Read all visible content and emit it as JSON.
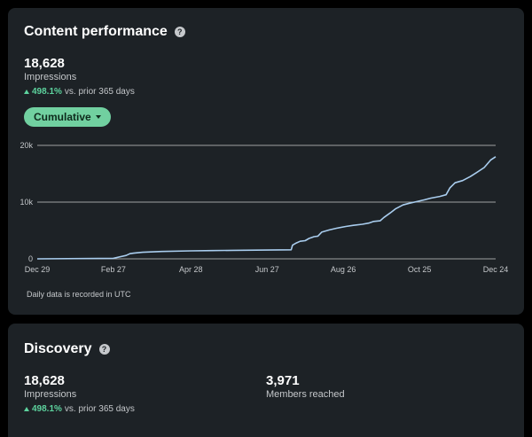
{
  "performance": {
    "title": "Content performance",
    "help_icon": "question-circle-icon",
    "impressions_value": "18,628",
    "impressions_label": "Impressions",
    "trend_pct": "498.1%",
    "trend_text": "vs. prior 365 days",
    "dropdown_label": "Cumulative",
    "footnote": "Daily data is recorded in UTC"
  },
  "discovery": {
    "title": "Discovery",
    "help_icon": "question-circle-icon",
    "impressions_value": "18,628",
    "impressions_label": "Impressions",
    "trend_pct": "498.1%",
    "trend_text": "vs. prior 365 days",
    "members_value": "3,971",
    "members_label": "Members reached"
  },
  "colors": {
    "card_bg": "#1d2226",
    "accent_green": "#5dd39e",
    "pill_bg": "#71d0a0",
    "line": "#a9cdee",
    "grid": "#e0e0e0"
  },
  "chart_data": {
    "type": "line",
    "ylim": [
      0,
      20000
    ],
    "yticks": [
      0,
      10000,
      20000
    ],
    "ytick_labels": [
      "0",
      "10k",
      "20k"
    ],
    "xlim": [
      "2023-12-29",
      "2024-12-24"
    ],
    "xtick_labels": [
      "Dec 29",
      "Feb 27",
      "Apr 28",
      "Jun 27",
      "Aug 26",
      "Oct 25",
      "Dec 24"
    ],
    "xticks": [
      "2023-12-29",
      "2024-02-27",
      "2024-04-28",
      "2024-06-27",
      "2024-08-26",
      "2024-10-25",
      "2024-12-24"
    ],
    "grid": true,
    "series": [
      {
        "x": [
          "2023-12-29",
          "2024-02-27",
          "2024-03-08",
          "2024-03-11",
          "2024-03-14",
          "2024-03-21",
          "2024-04-05",
          "2024-04-28",
          "2024-05-15",
          "2024-06-01",
          "2024-06-27",
          "2024-07-16",
          "2024-07-17",
          "2024-07-20",
          "2024-07-23",
          "2024-07-27",
          "2024-07-30",
          "2024-08-03",
          "2024-08-06",
          "2024-08-09",
          "2024-08-15",
          "2024-08-21",
          "2024-08-28",
          "2024-09-03",
          "2024-09-10",
          "2024-09-15",
          "2024-09-19",
          "2024-09-24",
          "2024-09-27",
          "2024-10-02",
          "2024-10-06",
          "2024-10-12",
          "2024-10-17",
          "2024-10-23",
          "2024-10-29",
          "2024-11-03",
          "2024-11-10",
          "2024-11-15",
          "2024-11-18",
          "2024-11-22",
          "2024-11-28",
          "2024-12-04",
          "2024-12-09",
          "2024-12-15",
          "2024-12-20",
          "2024-12-24"
        ],
        "y": [
          0,
          100,
          600,
          900,
          1000,
          1150,
          1300,
          1400,
          1450,
          1500,
          1550,
          1600,
          2400,
          2800,
          3100,
          3200,
          3600,
          3900,
          4000,
          4700,
          5100,
          5400,
          5700,
          5900,
          6100,
          6300,
          6600,
          6700,
          7300,
          8100,
          8800,
          9500,
          9800,
          10100,
          10400,
          10700,
          11000,
          11300,
          12500,
          13400,
          13800,
          14500,
          15200,
          16100,
          17400,
          18000
        ]
      }
    ]
  }
}
